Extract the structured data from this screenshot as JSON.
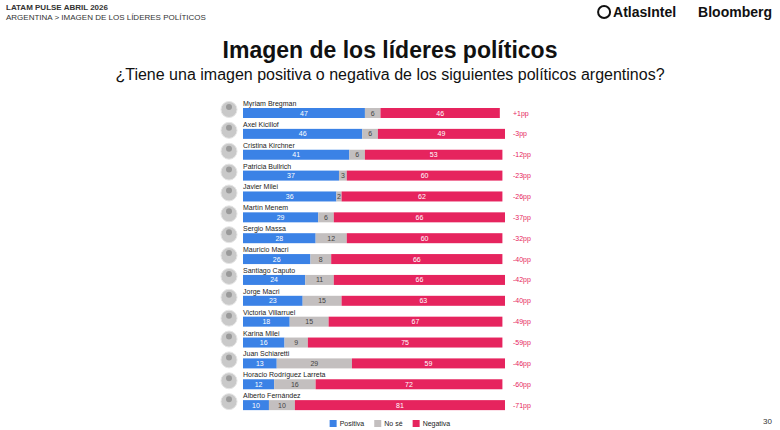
{
  "chart_data": {
    "type": "bar",
    "header": [
      "LATAM PULSE ABRIL 2026",
      "ARGENTINA > IMAGEN DE LOS LÍDERES POLÍTICOS"
    ],
    "logos": [
      "AtlasIntel",
      "Bloomberg"
    ],
    "title": "Imagen de los líderes políticos",
    "subtitle": "¿Tiene una imagen positiva o negativa de los siguientes políticos argentinos?",
    "page_number": 30,
    "orientation": "horizontal",
    "stacked": true,
    "data_labels": true,
    "tick_labels": false,
    "grid": false,
    "legend": "bottom",
    "xlim": [
      0,
      101
    ],
    "categories": [
      "Myriam Bregman",
      "Axel Kicillof",
      "Cristina Kirchner",
      "Patricia Bullrich",
      "Javier Milei",
      "Martín Menem",
      "Sergio Massa",
      "Mauricio Macri",
      "Santiago Caputo",
      "Jorge Macri",
      "Victoria Villarruel",
      "Karina Milei",
      "Juan Schiaretti",
      "Horacio Rodríguez Larreta",
      "Alberto Fernández"
    ],
    "series": [
      {
        "name": "Positiva",
        "color": "#3b82e6",
        "values": [
          47,
          46,
          41,
          37,
          36,
          29,
          28,
          26,
          24,
          23,
          18,
          16,
          13,
          12,
          10
        ]
      },
      {
        "name": "No sé",
        "color": "#c3bfbf",
        "values": [
          6,
          6,
          6,
          3,
          2,
          6,
          12,
          8,
          11,
          15,
          15,
          9,
          29,
          16,
          10
        ]
      },
      {
        "name": "Negativa",
        "color": "#e6245e",
        "values": [
          46,
          49,
          53,
          60,
          62,
          66,
          60,
          66,
          66,
          63,
          67,
          75,
          59,
          72,
          81
        ]
      }
    ],
    "differences": [
      1,
      -3,
      -12,
      -23,
      -26,
      -37,
      -32,
      -40,
      -42,
      -40,
      -49,
      -59,
      -46,
      -60,
      -71
    ],
    "difference_labels": [
      "+1pp",
      "-3pp",
      "-12pp",
      "-23pp",
      "-26pp",
      "-37pp",
      "-32pp",
      "-40pp",
      "-42pp",
      "-40pp",
      "-49pp",
      "-59pp",
      "-46pp",
      "-60pp",
      "-71pp"
    ]
  }
}
